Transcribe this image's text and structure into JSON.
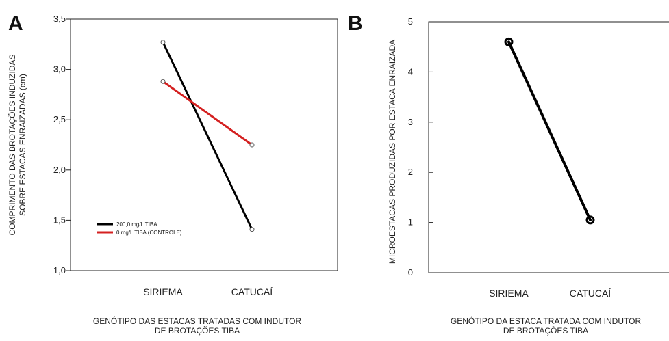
{
  "chart_data": [
    {
      "panel": "A",
      "type": "line",
      "categories": [
        "SIRIEMA",
        "CATUCAÍ"
      ],
      "series": [
        {
          "name": "200,0 mg/L TIBA",
          "values": [
            3.27,
            1.41
          ],
          "color": "#000000"
        },
        {
          "name": "0 mg/L TIBA (CONTROLE)",
          "values": [
            2.88,
            2.25
          ],
          "color": "#d42020"
        }
      ],
      "ylim": [
        1.0,
        3.5
      ],
      "yticks": [
        "1,0",
        "1,5",
        "2,0",
        "2,5",
        "3,0",
        "3,5"
      ],
      "ylabel_lines": [
        "COMPRIMENTO DAS BROTAÇÕES INDUZIDAS",
        "SOBRE ESTACAS ENRAIZADAS (cm)"
      ],
      "xlabel_lines": [
        "GENÓTIPO DAS ESTACAS TRATADAS COM INDUTOR",
        "DE BROTAÇÕES TIBA"
      ],
      "legend_position": "bottom-left",
      "grid": false
    },
    {
      "panel": "B",
      "type": "line",
      "categories": [
        "SIRIEMA",
        "CATUCAÍ"
      ],
      "series": [
        {
          "values": [
            4.6,
            1.05
          ],
          "color": "#000000"
        }
      ],
      "ylim": [
        0,
        5
      ],
      "yticks": [
        "0",
        "1",
        "2",
        "3",
        "4",
        "5"
      ],
      "ylabel_lines": [
        "MICROESTACAS PRODUZIDAS POR ESTACA ENRAIZADA"
      ],
      "xlabel_lines": [
        "GENÓTIPO DA ESTACA TRATADA COM INDUTOR",
        "DE BROTAÇÕES TIBA"
      ],
      "grid": false
    }
  ]
}
